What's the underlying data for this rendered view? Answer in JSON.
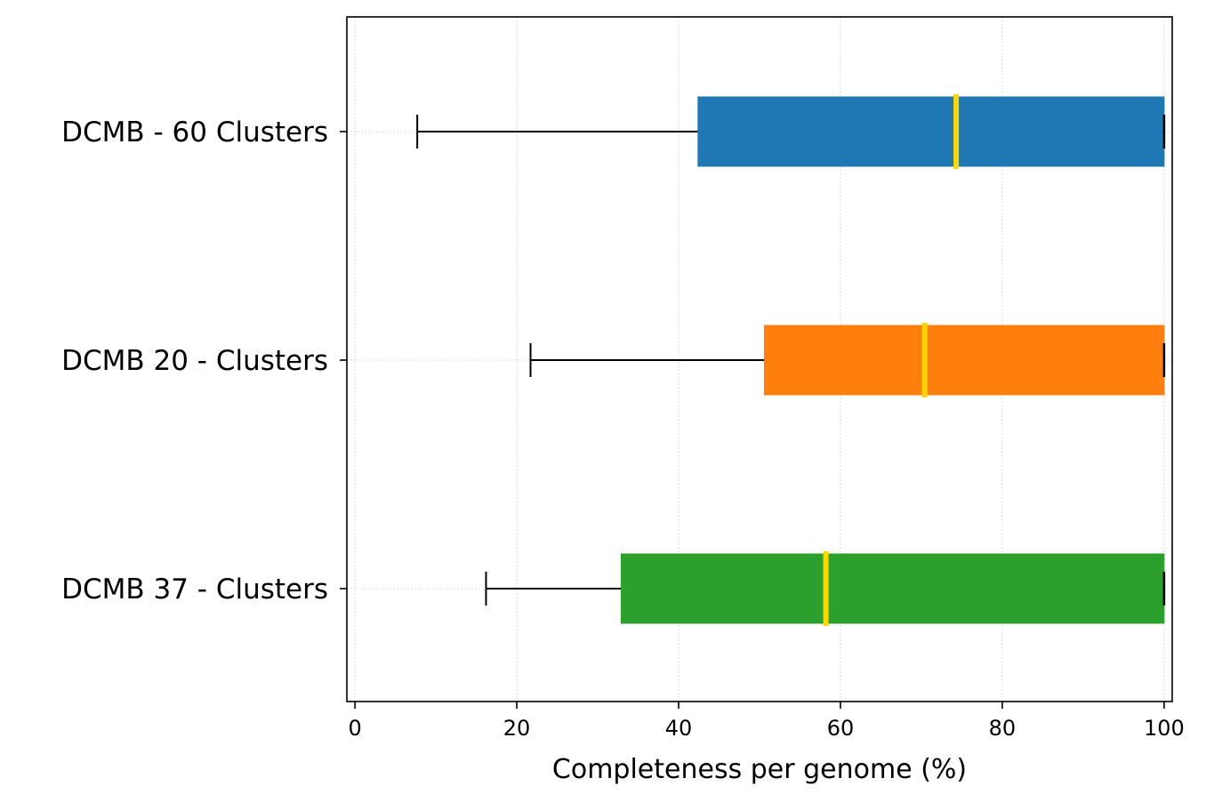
{
  "chart_data": {
    "type": "boxplot",
    "orientation": "horizontal",
    "title": "",
    "xlabel": "Completeness per genome (%)",
    "ylabel": "",
    "xlim": [
      -1,
      101
    ],
    "xticks": [
      0,
      20,
      40,
      60,
      80,
      100
    ],
    "xtick_labels": [
      "0",
      "20",
      "40",
      "60",
      "80",
      "100"
    ],
    "grid": true,
    "legend": "none",
    "median_color": "#FFD700",
    "whisker_color": "#000000",
    "series": [
      {
        "name": "DCMB - 60 Clusters",
        "color": "#1f77b4",
        "whisker_low": 7.7,
        "q1": 42.4,
        "median": 74.3,
        "q3": 100,
        "whisker_high": 100
      },
      {
        "name": "DCMB 20 - Clusters",
        "color": "#ff7f0e",
        "whisker_low": 21.7,
        "q1": 50.6,
        "median": 70.4,
        "q3": 100,
        "whisker_high": 100
      },
      {
        "name": "DCMB 37 - Clusters",
        "color": "#2ca02c",
        "whisker_low": 16.2,
        "q1": 32.9,
        "median": 58.2,
        "q3": 100,
        "whisker_high": 100
      }
    ]
  }
}
